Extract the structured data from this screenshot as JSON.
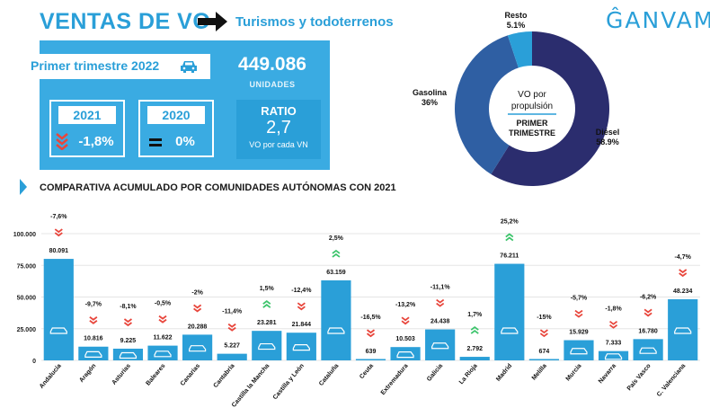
{
  "header": {
    "title": "VENTAS DE VO",
    "subtitle": "Turismos y todoterrenos",
    "logo": "ĜANVAM"
  },
  "summary": {
    "period_label": "Primer trimestre 2022",
    "units_value": "449.086",
    "units_label": "UNIDADES",
    "year_a": "2021",
    "year_a_change": "-1,8%",
    "year_b": "2020",
    "year_b_change": "0%",
    "ratio_label": "RATIO",
    "ratio_value": "2,7",
    "ratio_caption": "VO por cada VN"
  },
  "pie": {
    "center_line1": "VO por",
    "center_line2": "propulsión",
    "center_line3": "PRIMER",
    "center_line4": "TRIMESTRE"
  },
  "section": {
    "title": "COMPARATIVA ACUMULADO POR COMUNIDADES AUTÓNOMAS CON 2021"
  },
  "chart_data": [
    {
      "type": "pie",
      "labels": [
        "Diésel",
        "Gasolina",
        "Resto"
      ],
      "values": [
        58.9,
        36,
        5.1
      ],
      "value_labels": [
        "58.9%",
        "36%",
        "5.1%"
      ],
      "colors": [
        "#2b2d6e",
        "#2f5fa3",
        "#2a9fd8"
      ]
    },
    {
      "type": "bar",
      "categories": [
        "Andalucía",
        "Aragón",
        "Asturias",
        "Baleares",
        "Canarias",
        "Cantabria",
        "Castilla la Mancha",
        "Castilla y León",
        "Cataluña",
        "Ceuta",
        "Extremadura",
        "Galicia",
        "La Rioja",
        "Madrid",
        "Melilla",
        "Murcia",
        "Navarra",
        "País Vasco",
        "C. Valenciana"
      ],
      "values": [
        80091,
        10816,
        9225,
        11622,
        20288,
        5227,
        23281,
        21844,
        63159,
        639,
        10503,
        24438,
        2792,
        76211,
        674,
        15929,
        7333,
        16780,
        48234
      ],
      "value_labels": [
        "80.091",
        "10.816",
        "9.225",
        "11.622",
        "20.288",
        "5.227",
        "23.281",
        "21.844",
        "63.159",
        "639",
        "10.503",
        "24.438",
        "2.792",
        "76.211",
        "674",
        "15.929",
        "7.333",
        "16.780",
        "48.234"
      ],
      "changes": [
        "-7,6%",
        "-9,7%",
        "-8,1%",
        "-0,5%",
        "-2%",
        "-11,4%",
        "1,5%",
        "-12,4%",
        "2,5%",
        "-16,5%",
        "-13,2%",
        "-11,1%",
        "1,7%",
        "25,2%",
        "-15%",
        "-5,7%",
        "-1,8%",
        "-6,2%",
        "-4,7%"
      ],
      "yticks": [
        0,
        25000,
        50000,
        75000,
        100000
      ],
      "ytick_labels": [
        "0",
        "25.000",
        "50.000",
        "75.000",
        "100.000"
      ],
      "ylim": [
        0,
        100000
      ],
      "bar_color": "#2a9fd8",
      "up_color": "#3cc46b",
      "down_color": "#e8463c"
    }
  ]
}
